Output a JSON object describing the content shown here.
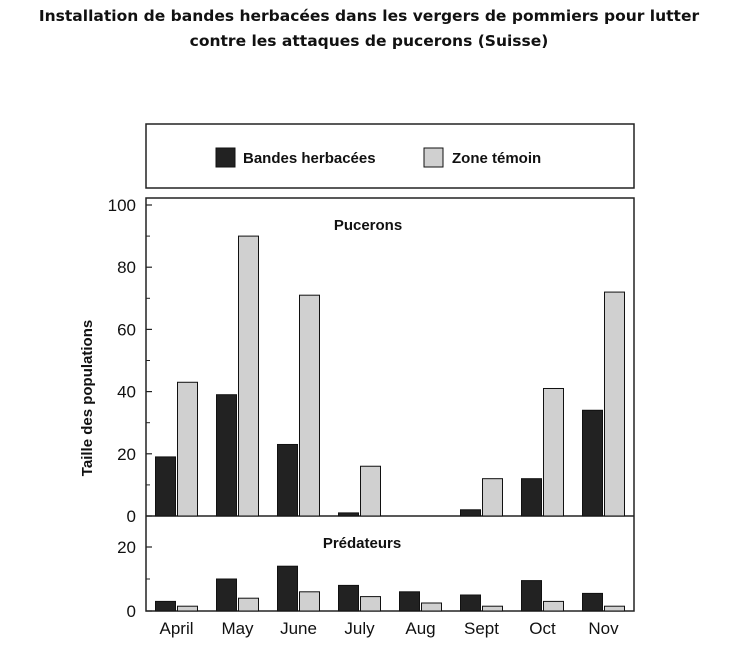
{
  "title": {
    "line1": "Installation de bandes herbacées dans les vergers de pommiers pour lutter",
    "line2": "contre les attaques de pucerons (Suisse)"
  },
  "colors": {
    "bandes": "#222222",
    "temoin": "#d0d0d0",
    "axis": "#222222"
  },
  "chart_data": {
    "type": "bar",
    "categories": [
      "April",
      "May",
      "June",
      "July",
      "Aug",
      "Sept",
      "Oct",
      "Nov"
    ],
    "ylabel": "Taille des populations",
    "legend": {
      "placement": "top",
      "entries": [
        "Bandes herbacées",
        "Zone témoin"
      ]
    },
    "grid": false,
    "panels": [
      {
        "label": "Pucerons",
        "ylim": [
          0,
          100
        ],
        "yticks": [
          0,
          20,
          40,
          60,
          80,
          100
        ],
        "series": [
          {
            "name": "Bandes herbacées",
            "values": [
              19,
              39,
              23,
              1,
              0,
              2,
              12,
              34
            ]
          },
          {
            "name": "Zone témoin",
            "values": [
              43,
              90,
              71,
              16,
              0,
              12,
              41,
              72
            ]
          }
        ]
      },
      {
        "label": "Prédateurs",
        "ylim": [
          0,
          23
        ],
        "yticks": [
          0,
          20
        ],
        "series": [
          {
            "name": "Bandes herbacées",
            "values": [
              3,
              10,
              14,
              8,
              6,
              5,
              9.5,
              5.5
            ]
          },
          {
            "name": "Zone témoin",
            "values": [
              1.5,
              4,
              6,
              4.5,
              2.5,
              1.5,
              3,
              1.5
            ]
          }
        ]
      }
    ]
  }
}
